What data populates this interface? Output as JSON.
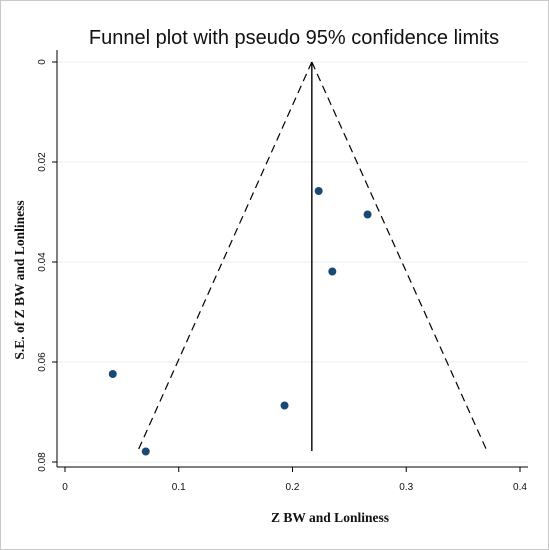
{
  "chart_data": {
    "type": "scatter",
    "title": "Funnel plot with pseudo 95% confidence limits",
    "xlabel": "Z BW and Lonliness",
    "ylabel": "S.E. of Z BW and Lonliness",
    "xlim": [
      0,
      0.4
    ],
    "ylim": [
      0,
      0.08
    ],
    "y_inverted": true,
    "x_ticks": [
      0,
      0.1,
      0.2,
      0.3,
      0.4
    ],
    "x_tick_labels": [
      "0",
      "0.1",
      "0.2",
      "0.3",
      "0.4"
    ],
    "y_ticks": [
      0,
      0.02,
      0.04,
      0.06,
      0.08
    ],
    "y_tick_labels": [
      "0",
      "0.02",
      "0.04",
      "0.06",
      "0.08"
    ],
    "grid": true,
    "legend": "none",
    "pooled_estimate": 0.217,
    "pooled_line_se_range": [
      0,
      0.0778
    ],
    "confidence_limits": {
      "apex": [
        0.217,
        0
      ],
      "left_end": [
        0.064,
        0.0778
      ],
      "right_end": [
        0.371,
        0.0778
      ]
    },
    "points": [
      {
        "x": 0.223,
        "y": 0.0258
      },
      {
        "x": 0.266,
        "y": 0.0305
      },
      {
        "x": 0.235,
        "y": 0.0419
      },
      {
        "x": 0.042,
        "y": 0.0624
      },
      {
        "x": 0.193,
        "y": 0.0687
      },
      {
        "x": 0.071,
        "y": 0.0779
      }
    ],
    "colors": {
      "marker": "#1a4a73",
      "line": "#000000",
      "grid": "#e3ecee",
      "axis": "#000000"
    }
  }
}
